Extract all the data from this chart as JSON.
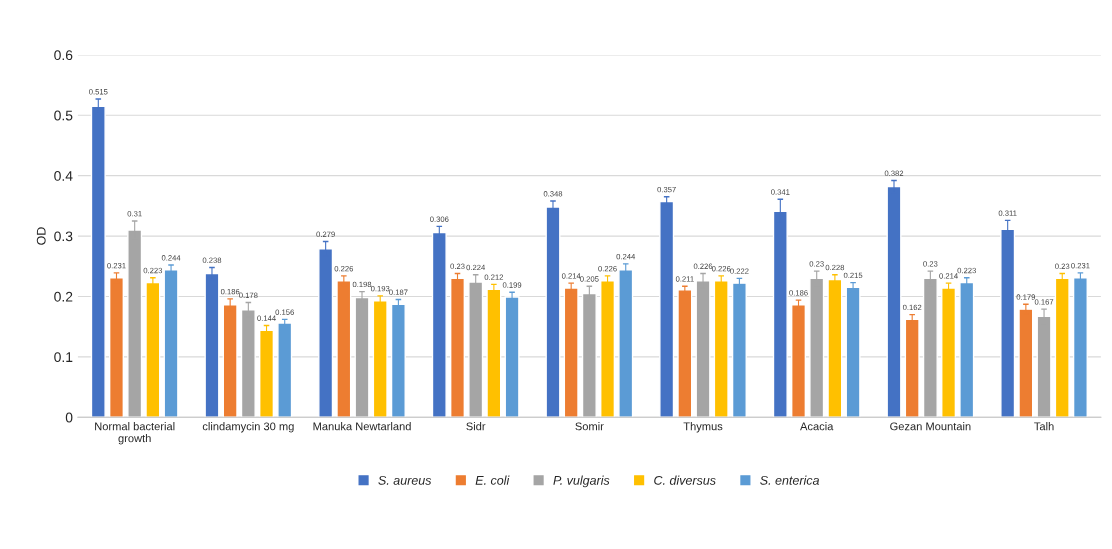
{
  "chart_data": {
    "type": "bar",
    "ylabel": "OD",
    "categories": [
      "Normal bacterial growth",
      "clindamycin 30 mg",
      "Manuka Newtarland",
      "Sidr",
      "Somir",
      "Thymus",
      "Acacia",
      "Gezan Mountain",
      "Talh"
    ],
    "series": [
      {
        "name": "S. aureus",
        "color": "#4472c4",
        "values": [
          0.515,
          0.238,
          0.279,
          0.306,
          0.348,
          0.357,
          0.341,
          0.382,
          0.311
        ],
        "errors": [
          0.012,
          0.01,
          0.012,
          0.01,
          0.01,
          0.008,
          0.02,
          0.01,
          0.015
        ]
      },
      {
        "name": "E. coli",
        "color": "#ed7d31",
        "values": [
          0.231,
          0.186,
          0.226,
          0.23,
          0.214,
          0.211,
          0.186,
          0.162,
          0.179
        ],
        "errors": [
          0.008,
          0.01,
          0.008,
          0.008,
          0.008,
          0.006,
          0.008,
          0.008,
          0.008
        ]
      },
      {
        "name": "P. vulgaris",
        "color": "#a5a5a5",
        "values": [
          0.31,
          0.178,
          0.198,
          0.224,
          0.205,
          0.226,
          0.23,
          0.23,
          0.167
        ],
        "errors": [
          0.015,
          0.012,
          0.01,
          0.012,
          0.012,
          0.012,
          0.012,
          0.012,
          0.012
        ]
      },
      {
        "name": "C. diversus",
        "color": "#ffc000",
        "values": [
          0.223,
          0.144,
          0.193,
          0.212,
          0.226,
          0.226,
          0.228,
          0.214,
          0.23
        ],
        "errors": [
          0.008,
          0.008,
          0.008,
          0.008,
          0.008,
          0.008,
          0.008,
          0.008,
          0.008
        ]
      },
      {
        "name": "S. enterica",
        "color": "#5b9bd5",
        "values": [
          0.244,
          0.156,
          0.187,
          0.199,
          0.244,
          0.222,
          0.215,
          0.223,
          0.231
        ],
        "errors": [
          0.008,
          0.006,
          0.008,
          0.008,
          0.01,
          0.008,
          0.008,
          0.008,
          0.008
        ]
      }
    ],
    "ylim": [
      0,
      0.6
    ],
    "yticks": [
      0,
      0.1,
      0.2,
      0.3,
      0.4,
      0.5,
      0.6
    ],
    "grid": "y",
    "legend": "bottom",
    "data_labels": true
  }
}
